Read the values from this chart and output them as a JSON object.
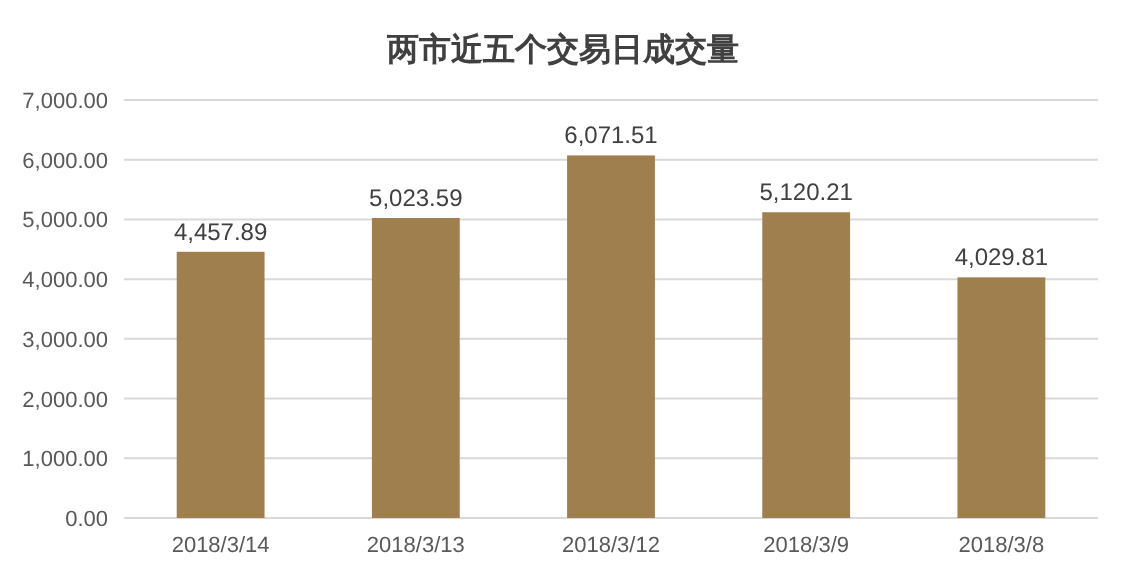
{
  "chart_data": {
    "type": "bar",
    "title": "两市近五个交易日成交量",
    "categories": [
      "2018/3/14",
      "2018/3/13",
      "2018/3/12",
      "2018/3/9",
      "2018/3/8"
    ],
    "values": [
      4457.89,
      5023.59,
      6071.51,
      5120.21,
      4029.81
    ],
    "color": "#a07f4f",
    "ylim": [
      0,
      7000
    ],
    "yticks": [
      {
        "value": 0,
        "label": "0.00"
      },
      {
        "value": 1000,
        "label": "1,000.00"
      },
      {
        "value": 2000,
        "label": "2,000.00"
      },
      {
        "value": 3000,
        "label": "3,000.00"
      },
      {
        "value": 4000,
        "label": "4,000.00"
      },
      {
        "value": 5000,
        "label": "5,000.00"
      },
      {
        "value": 6000,
        "label": "6,000.00"
      },
      {
        "value": 7000,
        "label": "7,000.00"
      }
    ],
    "value_labels": [
      "4,457.89",
      "5,023.59",
      "6,071.51",
      "5,120.21",
      "4,029.81"
    ],
    "grid": "y"
  }
}
